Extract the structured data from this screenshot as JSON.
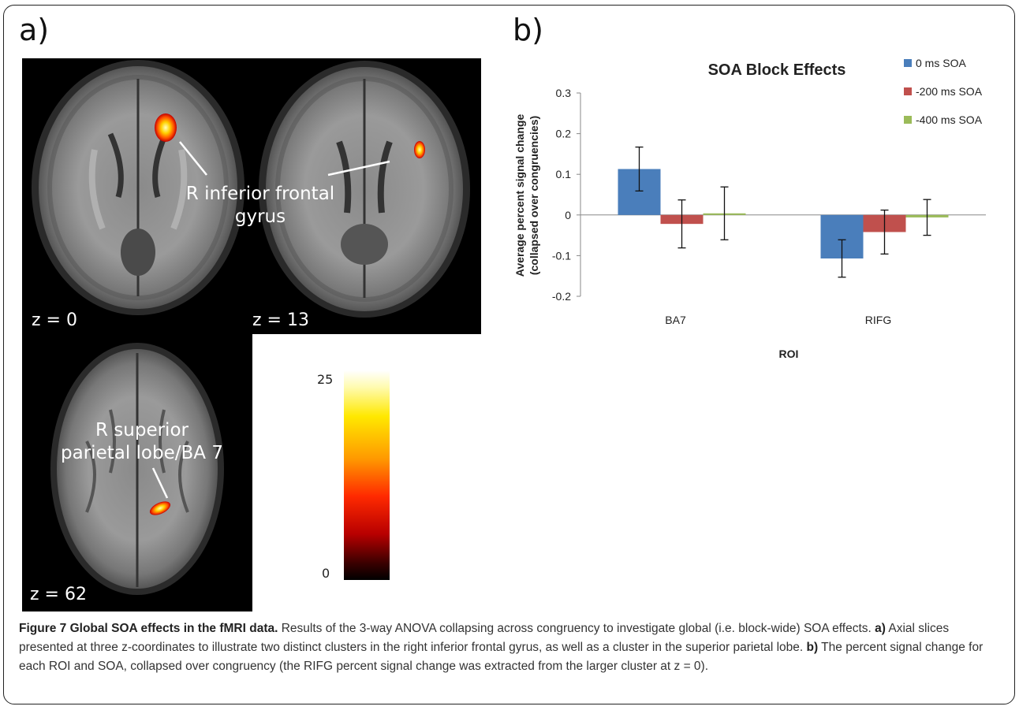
{
  "panel_a_label": "a)",
  "panel_b_label": "b)",
  "brain": {
    "slice1_label": "z = 0",
    "slice2_label": "z = 13",
    "slice3_label": "z = 62",
    "annotation_ifg": "R inferior frontal\ngyrus",
    "annotation_bpl": "R superior\nparietal lobe/BA 7"
  },
  "colorbar": {
    "max_label": "25",
    "min_label": "0"
  },
  "chart_data": {
    "type": "bar",
    "title": "SOA Block Effects",
    "xlabel": "ROI",
    "ylabel": "Average percent signal change (collapsed over congruencies)",
    "ylabel_line1": "Average percent signal change",
    "ylabel_line2": "(collapsed over congruencies)",
    "categories": [
      "BA7",
      "RIFG"
    ],
    "ylim": [
      -0.2,
      0.3
    ],
    "yticks": [
      "0.3",
      "0.2",
      "0.1",
      "0",
      "-0.1",
      "-0.2"
    ],
    "ytick_values": [
      0.3,
      0.2,
      0.1,
      0,
      -0.1,
      -0.2
    ],
    "legend_position": "top-right",
    "series": [
      {
        "name": "0 ms SOA",
        "color": "#4a7ebb",
        "values": [
          0.113,
          -0.107
        ],
        "errors": [
          0.054,
          0.046
        ]
      },
      {
        "name": "-200 ms SOA",
        "color": "#c0504d",
        "values": [
          -0.022,
          -0.042
        ],
        "errors": [
          0.059,
          0.054
        ]
      },
      {
        "name": "-400 ms SOA",
        "color": "#9bbb59",
        "values": [
          0.004,
          -0.006
        ],
        "errors": [
          0.065,
          0.044
        ]
      }
    ]
  },
  "caption": {
    "title": "Figure 7 Global SOA effects in the fMRI data.",
    "intro": " Results of the 3-way ANOVA collapsing across congruency to investigate global (i.e. block-wide) SOA effects.",
    "a_label": "a)",
    "a_text": " Axial slices presented at three z-coordinates to illustrate two distinct clusters in the right inferior frontal gyrus, as well as a cluster in the superior parietal lobe.",
    "b_label": "b)",
    "b_text": " The percent signal change for each ROI and SOA, collapsed over congruency (the RIFG percent signal change was extracted from the larger cluster at z = 0)."
  }
}
